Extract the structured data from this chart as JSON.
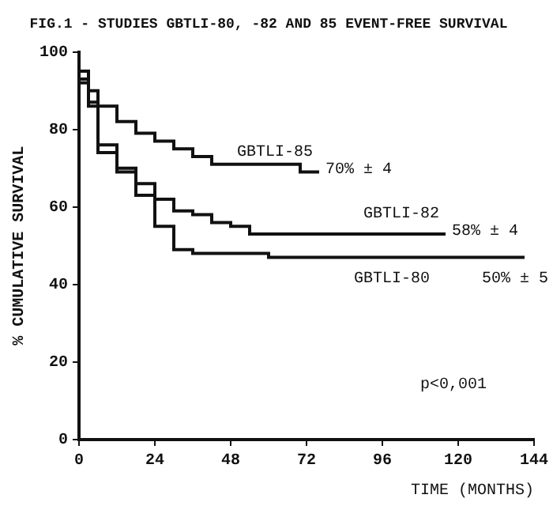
{
  "chart_data": {
    "type": "step",
    "title": "FIG.1 - STUDIES GBTLI-80, -82 AND 85 EVENT-FREE SURVIVAL",
    "xlabel": "TIME (MONTHS)",
    "ylabel": "% CUMULATIVE SURVIVAL",
    "series": [
      {
        "name": "GBTLI-85",
        "color": "#111111",
        "x": [
          0,
          3,
          6,
          12,
          18,
          24,
          30,
          36,
          42,
          48,
          60,
          70,
          72,
          76
        ],
        "values": [
          100,
          95,
          90,
          86,
          82,
          79,
          77,
          75,
          73,
          71,
          71,
          71,
          69,
          69
        ]
      },
      {
        "name": "GBTLI-82",
        "color": "#111111",
        "x": [
          0,
          3,
          6,
          12,
          18,
          24,
          30,
          36,
          42,
          48,
          54,
          60,
          72,
          90,
          116
        ],
        "values": [
          100,
          93,
          87,
          76,
          70,
          66,
          62,
          59,
          58,
          56,
          55,
          53,
          53,
          53,
          53
        ]
      },
      {
        "name": "GBTLI-80",
        "color": "#111111",
        "x": [
          0,
          3,
          6,
          12,
          18,
          24,
          30,
          36,
          48,
          60,
          72,
          100,
          141
        ],
        "values": [
          100,
          92,
          86,
          74,
          69,
          63,
          55,
          49,
          48,
          48,
          47,
          47,
          47
        ]
      }
    ],
    "annotations": [
      {
        "text": "70% ± 4",
        "x": 76,
        "y": 69
      },
      {
        "text": "58% ± 4",
        "x": 116,
        "y": 53
      },
      {
        "text": "50% ± 5",
        "x": 141,
        "y": 47
      },
      "p<0,001"
    ],
    "xlim": [
      0,
      144
    ],
    "xticks": [
      0,
      24,
      48,
      72,
      96,
      120,
      144
    ],
    "ylim": [
      0,
      100
    ],
    "yticks": [
      0,
      20,
      40,
      60,
      80,
      100
    ],
    "grid": false,
    "legend": false
  }
}
